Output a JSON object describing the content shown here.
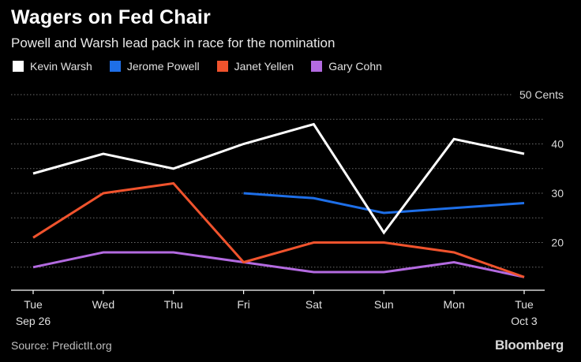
{
  "header": {
    "title": "Wagers on Fed Chair",
    "subtitle": "Powell and Warsh lead pack in race for the nomination"
  },
  "footer": {
    "source": "Source: PredictIt.org",
    "brand": "Bloomberg"
  },
  "chart_data": {
    "type": "line",
    "title": "Wagers on Fed Chair",
    "subtitle": "Powell and Warsh lead pack in race for the nomination",
    "categories": [
      "Tue",
      "Wed",
      "Thu",
      "Fri",
      "Sat",
      "Sun",
      "Mon",
      "Tue"
    ],
    "category_sublabels": [
      "Sep 26",
      "",
      "",
      "",
      "",
      "",
      "",
      "Oct 3"
    ],
    "ylabel": "",
    "ylim": [
      10,
      50
    ],
    "yticks": [
      {
        "value": 50,
        "label": "50 Cents"
      },
      {
        "value": 40,
        "label": "40"
      },
      {
        "value": 30,
        "label": "30"
      },
      {
        "value": 20,
        "label": "20"
      }
    ],
    "grid": true,
    "legend_position": "top-left",
    "series": [
      {
        "name": "Kevin Warsh",
        "color": "#ffffff",
        "values": [
          34,
          38,
          35,
          40,
          44,
          22,
          41,
          38
        ]
      },
      {
        "name": "Jerome Powell",
        "color": "#1e6fe8",
        "values": [
          null,
          null,
          null,
          30,
          29,
          26,
          27,
          28
        ]
      },
      {
        "name": "Janet Yellen",
        "color": "#f0532d",
        "values": [
          21,
          30,
          32,
          16,
          20,
          20,
          18,
          13
        ]
      },
      {
        "name": "Gary Cohn",
        "color": "#b36ae0",
        "values": [
          15,
          18,
          18,
          16,
          14,
          14,
          16,
          13
        ]
      }
    ]
  }
}
